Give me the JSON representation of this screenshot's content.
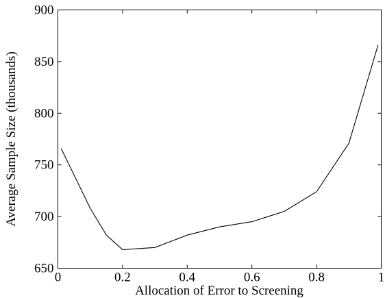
{
  "chart_data": {
    "type": "line",
    "title": "",
    "xlabel": "Allocation of Error to Screening",
    "ylabel": "Average Sample Size (thousands)",
    "xlim": [
      0,
      1
    ],
    "ylim": [
      650,
      900
    ],
    "xticks": [
      0,
      0.2,
      0.4,
      0.6,
      0.8,
      1
    ],
    "xtick_labels": [
      "0",
      "0.2",
      "0.4",
      "0.6",
      "0.8",
      "1"
    ],
    "yticks": [
      650,
      700,
      750,
      800,
      850,
      900
    ],
    "ytick_labels": [
      "650",
      "700",
      "750",
      "800",
      "850",
      "900"
    ],
    "grid": false,
    "legend": "none",
    "series": [
      {
        "x": [
          0.01,
          0.1,
          0.15,
          0.2,
          0.3,
          0.4,
          0.5,
          0.6,
          0.7,
          0.8,
          0.9,
          0.99
        ],
        "y": [
          766,
          708,
          682,
          668,
          670,
          682,
          690,
          695,
          705,
          724,
          771,
          866
        ],
        "color": "#000000"
      }
    ]
  }
}
